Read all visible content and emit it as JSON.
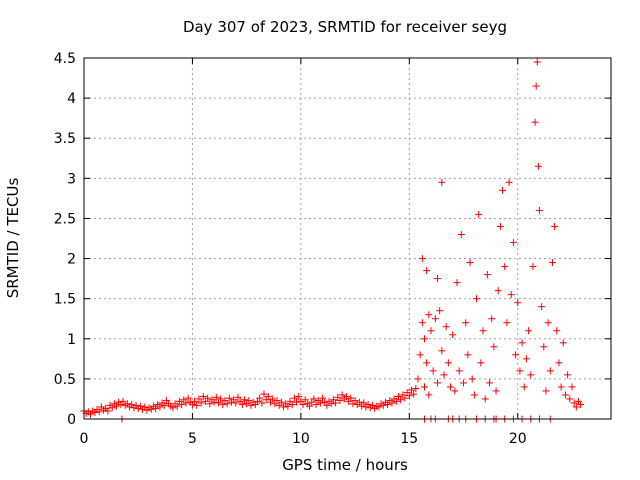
{
  "chart_data": {
    "type": "scatter",
    "title": "Day 307 of 2023, SRMTID for receiver seyg",
    "xlabel": "GPS time / hours",
    "ylabel": "SRMTID / TECUs",
    "xlim": [
      0,
      24.3
    ],
    "ylim": [
      0,
      4.5
    ],
    "xticks": [
      0,
      5,
      10,
      15,
      20
    ],
    "yticks": [
      0,
      0.5,
      1,
      1.5,
      2,
      2.5,
      3,
      3.5,
      4,
      4.5
    ],
    "xtick_labels": [
      "0",
      "5",
      "10",
      "15",
      "20"
    ],
    "ytick_labels": [
      "0",
      "0.5",
      "1",
      "1.5",
      "2",
      "2.5",
      "3",
      "3.5",
      "4",
      "4.5"
    ],
    "grid": true,
    "marker": "+",
    "color": "#ff0000",
    "series": [
      {
        "name": "SRMTID",
        "points": [
          [
            0.0,
            0.1
          ],
          [
            0.1,
            0.07
          ],
          [
            0.2,
            0.09
          ],
          [
            0.3,
            0.06
          ],
          [
            0.4,
            0.1
          ],
          [
            0.5,
            0.08
          ],
          [
            0.6,
            0.12
          ],
          [
            0.7,
            0.09
          ],
          [
            0.8,
            0.15
          ],
          [
            0.9,
            0.11
          ],
          [
            1.0,
            0.13
          ],
          [
            1.1,
            0.1
          ],
          [
            1.2,
            0.17
          ],
          [
            1.3,
            0.14
          ],
          [
            1.4,
            0.19
          ],
          [
            1.5,
            0.16
          ],
          [
            1.6,
            0.21
          ],
          [
            1.7,
            0.18
          ],
          [
            1.8,
            0.22
          ],
          [
            1.9,
            0.17
          ],
          [
            2.0,
            0.19
          ],
          [
            2.1,
            0.15
          ],
          [
            2.2,
            0.18
          ],
          [
            2.3,
            0.14
          ],
          [
            2.4,
            0.17
          ],
          [
            2.5,
            0.13
          ],
          [
            2.6,
            0.16
          ],
          [
            2.7,
            0.12
          ],
          [
            2.8,
            0.15
          ],
          [
            2.9,
            0.11
          ],
          [
            3.0,
            0.14
          ],
          [
            3.1,
            0.12
          ],
          [
            3.2,
            0.16
          ],
          [
            3.3,
            0.13
          ],
          [
            3.4,
            0.18
          ],
          [
            3.5,
            0.15
          ],
          [
            3.6,
            0.2
          ],
          [
            3.7,
            0.17
          ],
          [
            3.8,
            0.23
          ],
          [
            3.9,
            0.19
          ],
          [
            4.0,
            0.16
          ],
          [
            4.1,
            0.14
          ],
          [
            4.2,
            0.19
          ],
          [
            4.3,
            0.16
          ],
          [
            4.4,
            0.22
          ],
          [
            4.5,
            0.18
          ],
          [
            4.6,
            0.24
          ],
          [
            4.7,
            0.2
          ],
          [
            4.8,
            0.26
          ],
          [
            4.9,
            0.21
          ],
          [
            5.0,
            0.18
          ],
          [
            5.1,
            0.22
          ],
          [
            5.2,
            0.17
          ],
          [
            5.3,
            0.25
          ],
          [
            5.4,
            0.2
          ],
          [
            5.5,
            0.28
          ],
          [
            5.6,
            0.22
          ],
          [
            5.7,
            0.26
          ],
          [
            5.8,
            0.19
          ],
          [
            5.9,
            0.24
          ],
          [
            6.0,
            0.21
          ],
          [
            6.1,
            0.27
          ],
          [
            6.2,
            0.2
          ],
          [
            6.3,
            0.25
          ],
          [
            6.4,
            0.18
          ],
          [
            6.5,
            0.23
          ],
          [
            6.6,
            0.19
          ],
          [
            6.7,
            0.26
          ],
          [
            6.8,
            0.21
          ],
          [
            6.9,
            0.24
          ],
          [
            7.0,
            0.2
          ],
          [
            7.1,
            0.27
          ],
          [
            7.2,
            0.22
          ],
          [
            7.3,
            0.18
          ],
          [
            7.4,
            0.24
          ],
          [
            7.5,
            0.19
          ],
          [
            7.6,
            0.23
          ],
          [
            7.7,
            0.17
          ],
          [
            7.8,
            0.21
          ],
          [
            7.9,
            0.18
          ],
          [
            8.0,
            0.22
          ],
          [
            8.1,
            0.26
          ],
          [
            8.2,
            0.2
          ],
          [
            8.3,
            0.31
          ],
          [
            8.4,
            0.24
          ],
          [
            8.5,
            0.28
          ],
          [
            8.6,
            0.21
          ],
          [
            8.7,
            0.25
          ],
          [
            8.8,
            0.19
          ],
          [
            8.9,
            0.23
          ],
          [
            9.0,
            0.17
          ],
          [
            9.1,
            0.21
          ],
          [
            9.2,
            0.15
          ],
          [
            9.3,
            0.19
          ],
          [
            9.4,
            0.16
          ],
          [
            9.5,
            0.22
          ],
          [
            9.6,
            0.18
          ],
          [
            9.7,
            0.26
          ],
          [
            9.8,
            0.21
          ],
          [
            9.9,
            0.28
          ],
          [
            10.0,
            0.22
          ],
          [
            10.1,
            0.18
          ],
          [
            10.2,
            0.24
          ],
          [
            10.3,
            0.19
          ],
          [
            10.4,
            0.16
          ],
          [
            10.5,
            0.21
          ],
          [
            10.6,
            0.25
          ],
          [
            10.7,
            0.18
          ],
          [
            10.8,
            0.23
          ],
          [
            10.9,
            0.2
          ],
          [
            11.0,
            0.26
          ],
          [
            11.1,
            0.21
          ],
          [
            11.2,
            0.17
          ],
          [
            11.3,
            0.22
          ],
          [
            11.4,
            0.19
          ],
          [
            11.5,
            0.24
          ],
          [
            11.6,
            0.2
          ],
          [
            11.7,
            0.27
          ],
          [
            11.8,
            0.23
          ],
          [
            11.9,
            0.3
          ],
          [
            12.0,
            0.25
          ],
          [
            12.1,
            0.28
          ],
          [
            12.2,
            0.22
          ],
          [
            12.3,
            0.26
          ],
          [
            12.4,
            0.19
          ],
          [
            12.5,
            0.23
          ],
          [
            12.6,
            0.18
          ],
          [
            12.7,
            0.21
          ],
          [
            12.8,
            0.16
          ],
          [
            12.9,
            0.2
          ],
          [
            13.0,
            0.15
          ],
          [
            13.1,
            0.18
          ],
          [
            13.2,
            0.14
          ],
          [
            13.3,
            0.17
          ],
          [
            13.4,
            0.13
          ],
          [
            13.5,
            0.16
          ],
          [
            13.6,
            0.15
          ],
          [
            13.7,
            0.19
          ],
          [
            13.8,
            0.17
          ],
          [
            13.9,
            0.21
          ],
          [
            14.0,
            0.18
          ],
          [
            14.1,
            0.23
          ],
          [
            14.2,
            0.2
          ],
          [
            14.3,
            0.25
          ],
          [
            14.4,
            0.22
          ],
          [
            14.5,
            0.28
          ],
          [
            14.6,
            0.24
          ],
          [
            14.7,
            0.3
          ],
          [
            14.8,
            0.26
          ],
          [
            14.9,
            0.33
          ],
          [
            15.0,
            0.29
          ],
          [
            15.1,
            0.36
          ],
          [
            15.2,
            0.31
          ],
          [
            15.3,
            0.38
          ],
          [
            15.4,
            0.5
          ],
          [
            15.5,
            0.8
          ],
          [
            15.6,
            1.2
          ],
          [
            15.7,
            1.0
          ],
          [
            15.8,
            0.7
          ],
          [
            15.9,
            1.3
          ],
          [
            15.6,
            2.0
          ],
          [
            15.8,
            1.85
          ],
          [
            15.7,
            0.4
          ],
          [
            15.9,
            0.3
          ],
          [
            16.0,
            1.1
          ],
          [
            16.1,
            0.6
          ],
          [
            16.2,
            1.25
          ],
          [
            16.3,
            0.45
          ],
          [
            16.4,
            1.35
          ],
          [
            16.5,
            0.85
          ],
          [
            16.3,
            1.75
          ],
          [
            16.6,
            0.55
          ],
          [
            16.7,
            1.15
          ],
          [
            16.5,
            2.95
          ],
          [
            16.8,
            0.7
          ],
          [
            16.9,
            0.4
          ],
          [
            17.0,
            1.05
          ],
          [
            17.1,
            0.35
          ],
          [
            17.2,
            1.7
          ],
          [
            17.3,
            0.6
          ],
          [
            17.4,
            2.3
          ],
          [
            17.5,
            0.45
          ],
          [
            17.6,
            1.2
          ],
          [
            17.7,
            0.8
          ],
          [
            17.8,
            1.95
          ],
          [
            17.9,
            0.5
          ],
          [
            18.0,
            0.3
          ],
          [
            18.1,
            1.5
          ],
          [
            18.2,
            2.55
          ],
          [
            18.3,
            0.7
          ],
          [
            18.4,
            1.1
          ],
          [
            18.5,
            0.25
          ],
          [
            18.6,
            1.8
          ],
          [
            18.7,
            0.45
          ],
          [
            18.8,
            1.25
          ],
          [
            18.9,
            0.9
          ],
          [
            19.0,
            0.35
          ],
          [
            19.1,
            1.6
          ],
          [
            19.2,
            2.4
          ],
          [
            19.3,
            2.85
          ],
          [
            19.4,
            1.9
          ],
          [
            19.5,
            1.2
          ],
          [
            19.6,
            2.95
          ],
          [
            19.7,
            1.55
          ],
          [
            19.8,
            2.2
          ],
          [
            19.9,
            0.8
          ],
          [
            20.0,
            1.45
          ],
          [
            20.1,
            0.6
          ],
          [
            20.2,
            0.95
          ],
          [
            20.3,
            0.4
          ],
          [
            20.4,
            0.75
          ],
          [
            20.5,
            1.1
          ],
          [
            20.6,
            0.55
          ],
          [
            20.7,
            1.9
          ],
          [
            20.8,
            3.7
          ],
          [
            20.85,
            4.15
          ],
          [
            20.9,
            4.45
          ],
          [
            20.95,
            3.15
          ],
          [
            21.0,
            2.6
          ],
          [
            21.1,
            1.4
          ],
          [
            21.2,
            0.9
          ],
          [
            21.3,
            0.35
          ],
          [
            21.4,
            1.2
          ],
          [
            21.5,
            0.6
          ],
          [
            21.6,
            1.95
          ],
          [
            21.7,
            2.4
          ],
          [
            21.8,
            1.1
          ],
          [
            21.9,
            0.7
          ],
          [
            22.0,
            0.4
          ],
          [
            22.1,
            0.95
          ],
          [
            22.2,
            0.3
          ],
          [
            22.3,
            0.55
          ],
          [
            22.4,
            0.25
          ],
          [
            22.5,
            0.4
          ],
          [
            22.6,
            0.2
          ],
          [
            22.7,
            0.15
          ],
          [
            22.8,
            0.22
          ],
          [
            22.9,
            0.18
          ],
          [
            15.7,
            0
          ],
          [
            16.0,
            0
          ],
          [
            16.2,
            0
          ],
          [
            16.8,
            0
          ],
          [
            17.0,
            0
          ],
          [
            17.3,
            0
          ],
          [
            17.6,
            0
          ],
          [
            18.1,
            0
          ],
          [
            18.5,
            0
          ],
          [
            18.9,
            0
          ],
          [
            19.0,
            0
          ],
          [
            19.4,
            0
          ],
          [
            19.8,
            0
          ],
          [
            20.2,
            0
          ],
          [
            20.6,
            0
          ],
          [
            21.0,
            0
          ],
          [
            21.5,
            0
          ],
          [
            1.75,
            0
          ]
        ]
      }
    ]
  }
}
